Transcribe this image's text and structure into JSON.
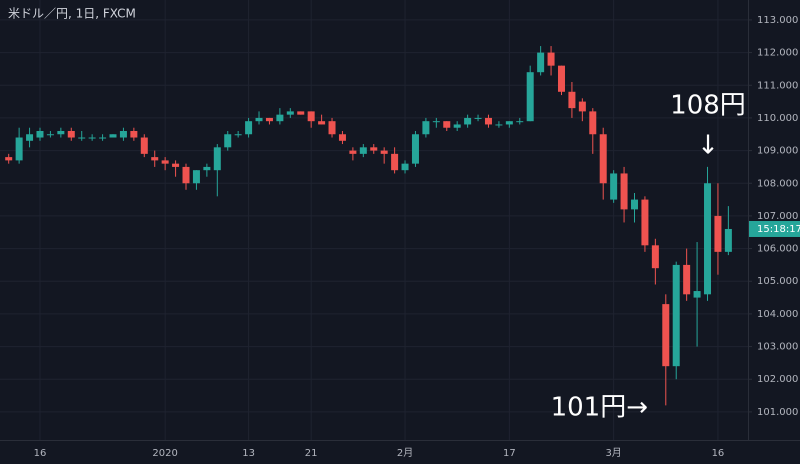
{
  "chart_data": {
    "type": "candlestick",
    "title": "米ドル／円, 1日, FXCM",
    "categories": [
      null,
      null,
      null,
      "16",
      null,
      null,
      null,
      null,
      null,
      null,
      null,
      null,
      null,
      null,
      null,
      "2020",
      null,
      null,
      null,
      null,
      null,
      null,
      null,
      "13",
      null,
      null,
      null,
      null,
      null,
      "21",
      null,
      null,
      null,
      null,
      null,
      null,
      null,
      null,
      "2月",
      null,
      null,
      null,
      null,
      null,
      null,
      null,
      null,
      null,
      "17",
      null,
      null,
      null,
      null,
      null,
      null,
      null,
      null,
      null,
      "3月",
      null,
      null,
      null,
      null,
      null,
      null,
      null,
      null,
      null,
      "16",
      null
    ],
    "open": [
      108.8,
      108.7,
      109.3,
      109.4,
      109.5,
      109.5,
      109.6,
      109.4,
      109.4,
      109.4,
      109.4,
      109.4,
      109.6,
      109.4,
      108.8,
      108.7,
      108.6,
      108.5,
      108.0,
      108.4,
      108.4,
      109.1,
      109.5,
      109.5,
      109.9,
      110.0,
      109.9,
      110.1,
      110.2,
      110.2,
      109.9,
      109.9,
      109.5,
      109.0,
      108.9,
      109.1,
      109.0,
      108.9,
      108.4,
      108.6,
      109.5,
      109.9,
      109.9,
      109.7,
      109.8,
      110.0,
      110.0,
      109.8,
      109.8,
      109.9,
      109.9,
      111.4,
      112.0,
      111.6,
      110.8,
      110.5,
      110.2,
      109.5,
      107.5,
      108.3,
      107.2,
      107.5,
      106.1,
      104.3,
      102.4,
      105.5,
      104.5,
      104.6,
      107.0,
      105.9
    ],
    "high": [
      108.9,
      109.7,
      109.7,
      109.7,
      109.6,
      109.7,
      109.7,
      109.6,
      109.5,
      109.5,
      109.5,
      109.7,
      109.7,
      109.5,
      109.0,
      108.8,
      108.7,
      108.6,
      108.4,
      108.6,
      109.2,
      109.6,
      109.6,
      110.0,
      110.2,
      110.0,
      110.3,
      110.3,
      110.2,
      110.2,
      110.1,
      110.0,
      109.6,
      109.1,
      109.2,
      109.2,
      109.1,
      109.1,
      108.7,
      109.6,
      110.0,
      110.0,
      109.9,
      109.9,
      110.1,
      110.1,
      110.1,
      109.9,
      109.9,
      110.0,
      111.6,
      112.2,
      112.2,
      111.6,
      111.1,
      110.6,
      110.3,
      109.7,
      108.4,
      108.5,
      107.7,
      107.6,
      106.3,
      104.6,
      105.6,
      106.0,
      106.2,
      108.5,
      108.0,
      107.3
    ],
    "low": [
      108.6,
      108.6,
      109.1,
      109.3,
      109.4,
      109.4,
      109.3,
      109.3,
      109.3,
      109.3,
      109.4,
      109.3,
      109.3,
      108.8,
      108.5,
      108.4,
      108.2,
      107.8,
      107.8,
      108.2,
      107.6,
      109.0,
      109.4,
      109.4,
      109.8,
      109.8,
      109.8,
      110.0,
      110.1,
      109.7,
      109.8,
      109.4,
      109.2,
      108.7,
      108.8,
      108.9,
      108.6,
      108.3,
      108.3,
      108.5,
      109.4,
      109.7,
      109.6,
      109.6,
      109.7,
      109.9,
      109.7,
      109.7,
      109.7,
      109.8,
      109.9,
      111.3,
      111.3,
      110.7,
      110.0,
      109.9,
      108.9,
      107.5,
      107.4,
      106.8,
      106.8,
      105.9,
      104.9,
      101.2,
      102.0,
      104.4,
      103.0,
      104.4,
      105.2,
      105.8
    ],
    "close": [
      108.7,
      109.4,
      109.5,
      109.6,
      109.5,
      109.6,
      109.4,
      109.4,
      109.4,
      109.4,
      109.5,
      109.6,
      109.4,
      108.9,
      108.7,
      108.6,
      108.5,
      108.0,
      108.4,
      108.5,
      109.1,
      109.5,
      109.5,
      109.9,
      110.0,
      109.9,
      110.1,
      110.2,
      110.1,
      109.9,
      109.8,
      109.5,
      109.3,
      108.9,
      109.1,
      109.0,
      108.9,
      108.4,
      108.6,
      109.5,
      109.9,
      109.9,
      109.7,
      109.8,
      110.0,
      110.0,
      109.8,
      109.8,
      109.9,
      109.9,
      111.4,
      112.0,
      111.6,
      110.8,
      110.3,
      110.2,
      109.5,
      108.0,
      108.3,
      107.2,
      107.5,
      106.1,
      105.4,
      102.4,
      105.5,
      104.6,
      104.7,
      108.0,
      105.9,
      106.6
    ],
    "up_color": "#26a69a",
    "down_color": "#ef5350",
    "ylim": [
      100.14,
      113.61
    ],
    "yticks": [
      {
        "value": 101,
        "label": "101.000"
      },
      {
        "value": 102,
        "label": "102.000"
      },
      {
        "value": 103,
        "label": "103.000"
      },
      {
        "value": 104,
        "label": "104.000"
      },
      {
        "value": 105,
        "label": "105.000"
      },
      {
        "value": 106,
        "label": "106.000"
      },
      {
        "value": 107,
        "label": "107.000"
      },
      {
        "value": 108,
        "label": "108.000"
      },
      {
        "value": 109,
        "label": "109.000"
      },
      {
        "value": 110,
        "label": "110.000"
      },
      {
        "value": 111,
        "label": "111.000"
      },
      {
        "value": 112,
        "label": "112.000"
      },
      {
        "value": 113,
        "label": "113.000"
      }
    ],
    "grid": true,
    "countdown": "15:18:17",
    "annotations": [
      "108円",
      "↓",
      "101円→"
    ]
  }
}
